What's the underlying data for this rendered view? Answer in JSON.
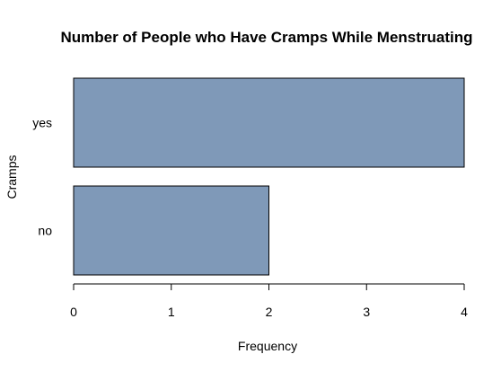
{
  "chart_data": {
    "type": "bar",
    "orientation": "horizontal",
    "title": "Number of People who Have Cramps While Menstruating",
    "xlabel": "Frequency",
    "ylabel": "Cramps",
    "categories": [
      "no",
      "yes"
    ],
    "values": [
      2,
      4
    ],
    "xlim": [
      0,
      4
    ],
    "xticks": [
      0,
      1,
      2,
      3,
      4
    ],
    "bar_color": "#7f99b8",
    "grid": false
  }
}
